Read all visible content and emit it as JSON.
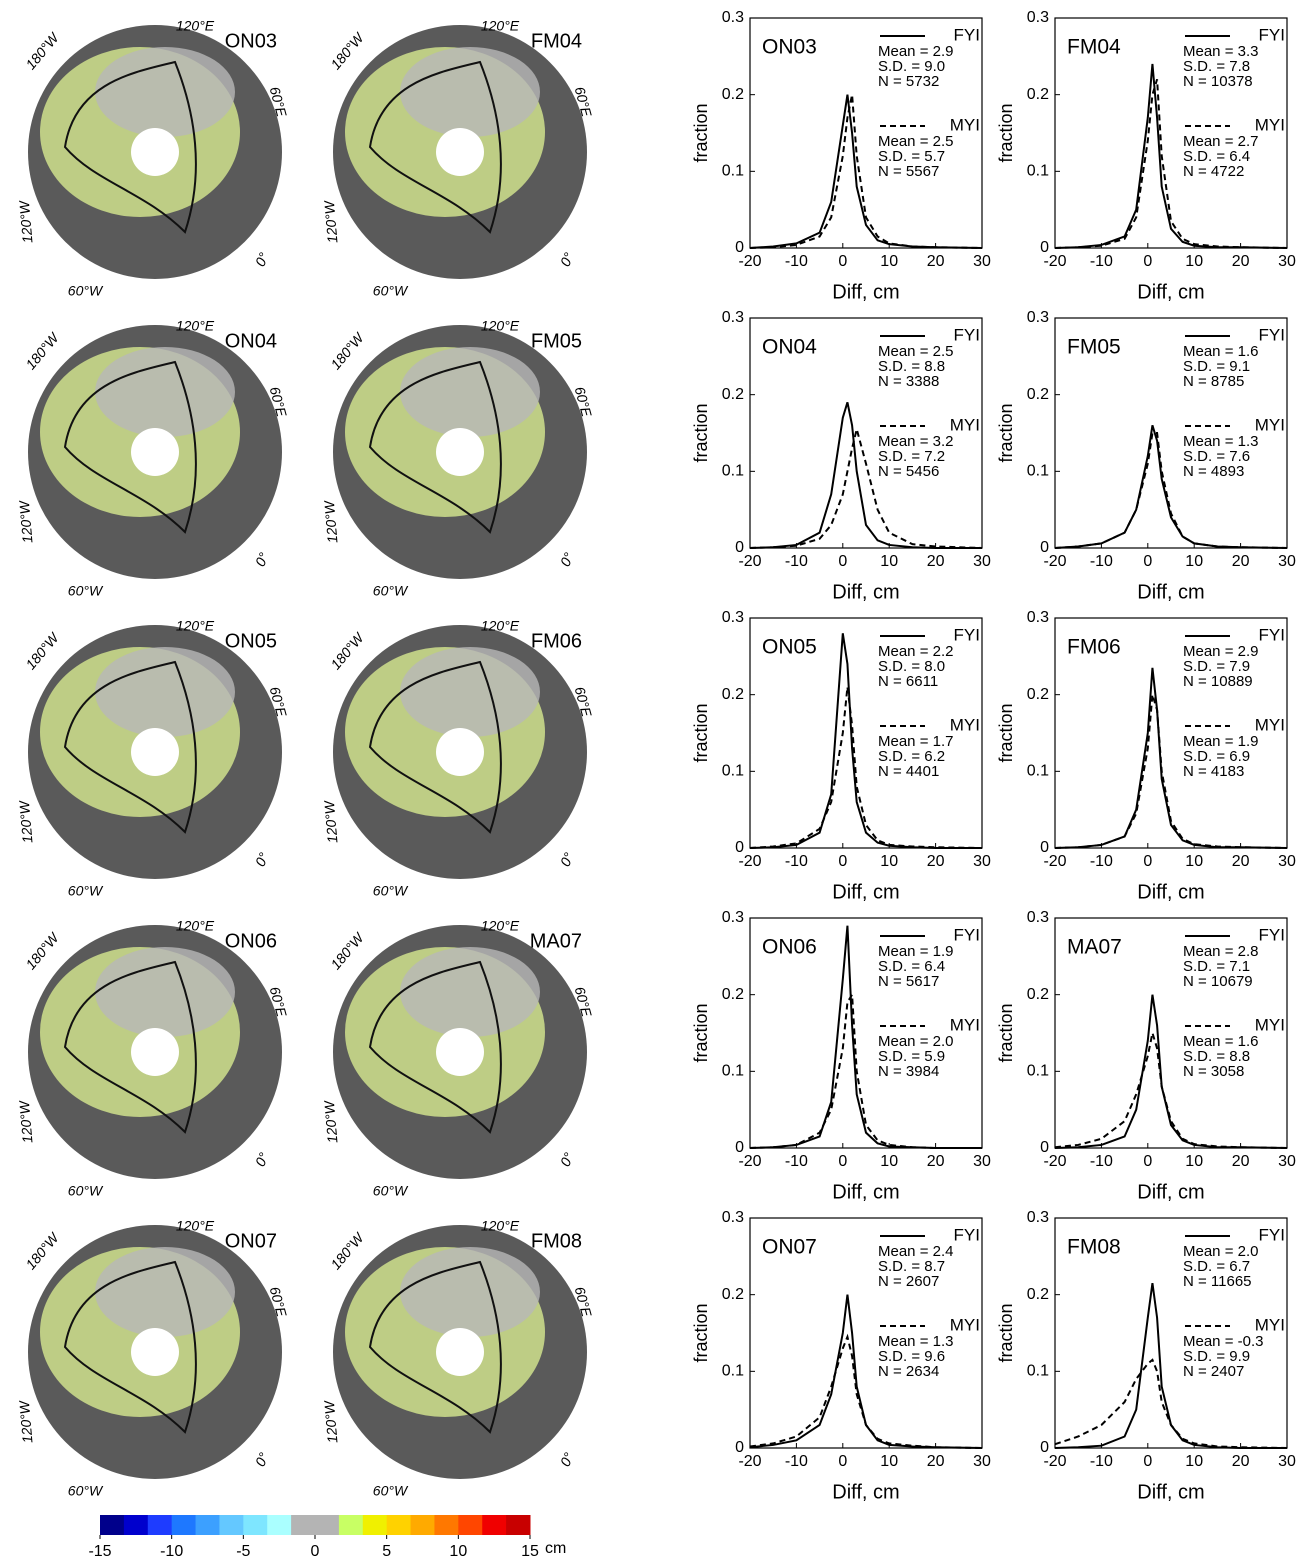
{
  "chart_data": [
    {
      "type": "line",
      "label": "ON03",
      "xlabel": "Diff, cm",
      "ylabel": "fraction",
      "xlim": [
        -20,
        30
      ],
      "ylim": [
        0,
        0.3
      ],
      "xticks": [
        -20,
        -10,
        0,
        10,
        20,
        30
      ],
      "yticks": [
        0,
        0.1,
        0.2,
        0.3
      ],
      "x": [
        -20,
        -15,
        -10,
        -5,
        -2.5,
        0,
        1,
        2,
        3,
        5,
        7.5,
        10,
        15,
        20,
        30
      ],
      "series": [
        {
          "name": "FYI",
          "color": "#000000",
          "dash": "solid",
          "stats": [
            "Mean = 2.9",
            "S.D. = 9.0",
            "N = 5732"
          ],
          "values": [
            0,
            0.002,
            0.006,
            0.02,
            0.06,
            0.16,
            0.2,
            0.15,
            0.08,
            0.03,
            0.01,
            0.005,
            0.002,
            0.001,
            0
          ]
        },
        {
          "name": "MYI",
          "color": "#000000",
          "dash": "dashed",
          "stats": [
            "Mean = 2.5",
            "S.D. = 5.7",
            "N = 5567"
          ],
          "values": [
            0,
            0.001,
            0.004,
            0.015,
            0.04,
            0.12,
            0.17,
            0.2,
            0.12,
            0.04,
            0.015,
            0.006,
            0.002,
            0.001,
            0
          ]
        }
      ]
    },
    {
      "type": "line",
      "label": "FM04",
      "xlabel": "Diff, cm",
      "ylabel": "fraction",
      "xlim": [
        -20,
        30
      ],
      "ylim": [
        0,
        0.3
      ],
      "xticks": [
        -20,
        -10,
        0,
        10,
        20,
        30
      ],
      "yticks": [
        0,
        0.1,
        0.2,
        0.3
      ],
      "x": [
        -20,
        -15,
        -10,
        -5,
        -2.5,
        0,
        1,
        2,
        3,
        5,
        7.5,
        10,
        15,
        20,
        30
      ],
      "series": [
        {
          "name": "FYI",
          "color": "#000000",
          "dash": "solid",
          "stats": [
            "Mean = 3.3",
            "S.D. = 7.8",
            "N = 10378"
          ],
          "values": [
            0,
            0.001,
            0.004,
            0.015,
            0.05,
            0.17,
            0.24,
            0.17,
            0.08,
            0.025,
            0.008,
            0.003,
            0.001,
            0.001,
            0
          ]
        },
        {
          "name": "MYI",
          "color": "#000000",
          "dash": "dashed",
          "stats": [
            "Mean = 2.7",
            "S.D. = 6.4",
            "N = 4722"
          ],
          "values": [
            0,
            0.001,
            0.003,
            0.012,
            0.04,
            0.14,
            0.2,
            0.22,
            0.12,
            0.035,
            0.012,
            0.005,
            0.002,
            0.001,
            0
          ]
        }
      ]
    },
    {
      "type": "line",
      "label": "ON04",
      "xlabel": "Diff, cm",
      "ylabel": "fraction",
      "xlim": [
        -20,
        30
      ],
      "ylim": [
        0,
        0.3
      ],
      "xticks": [
        -20,
        -10,
        0,
        10,
        20,
        30
      ],
      "yticks": [
        0,
        0.1,
        0.2,
        0.3
      ],
      "x": [
        -20,
        -15,
        -10,
        -5,
        -2.5,
        0,
        1,
        2,
        3,
        5,
        7.5,
        10,
        15,
        20,
        30
      ],
      "series": [
        {
          "name": "FYI",
          "color": "#000000",
          "dash": "solid",
          "stats": [
            "Mean = 2.5",
            "S.D. = 8.8",
            "N = 3388"
          ],
          "values": [
            0,
            0.001,
            0.004,
            0.02,
            0.07,
            0.17,
            0.19,
            0.16,
            0.1,
            0.03,
            0.01,
            0.004,
            0.001,
            0,
            0
          ]
        },
        {
          "name": "MYI",
          "color": "#000000",
          "dash": "dashed",
          "stats": [
            "Mean = 3.2",
            "S.D. = 7.2",
            "N = 5456"
          ],
          "values": [
            0,
            0.001,
            0.003,
            0.012,
            0.03,
            0.07,
            0.1,
            0.13,
            0.155,
            0.11,
            0.05,
            0.02,
            0.005,
            0.002,
            0
          ]
        }
      ]
    },
    {
      "type": "line",
      "label": "FM05",
      "xlabel": "Diff, cm",
      "ylabel": "fraction",
      "xlim": [
        -20,
        30
      ],
      "ylim": [
        0,
        0.3
      ],
      "xticks": [
        -20,
        -10,
        0,
        10,
        20,
        30
      ],
      "yticks": [
        0,
        0.1,
        0.2,
        0.3
      ],
      "x": [
        -20,
        -15,
        -10,
        -5,
        -2.5,
        0,
        1,
        2,
        3,
        5,
        7.5,
        10,
        15,
        20,
        30
      ],
      "series": [
        {
          "name": "FYI",
          "color": "#000000",
          "dash": "solid",
          "stats": [
            "Mean = 1.6",
            "S.D. = 9.1",
            "N = 8785"
          ],
          "values": [
            0,
            0.002,
            0.006,
            0.02,
            0.05,
            0.12,
            0.16,
            0.14,
            0.09,
            0.04,
            0.015,
            0.006,
            0.002,
            0.001,
            0
          ]
        },
        {
          "name": "MYI",
          "color": "#000000",
          "dash": "dashed",
          "stats": [
            "Mean = 1.3",
            "S.D. = 7.6",
            "N = 4893"
          ],
          "values": [
            0,
            0.002,
            0.006,
            0.02,
            0.05,
            0.11,
            0.15,
            0.15,
            0.1,
            0.045,
            0.015,
            0.006,
            0.002,
            0.001,
            0
          ]
        }
      ]
    },
    {
      "type": "line",
      "label": "ON05",
      "xlabel": "Diff, cm",
      "ylabel": "fraction",
      "xlim": [
        -20,
        30
      ],
      "ylim": [
        0,
        0.3
      ],
      "xticks": [
        -20,
        -10,
        0,
        10,
        20,
        30
      ],
      "yticks": [
        0,
        0.1,
        0.2,
        0.3
      ],
      "x": [
        -20,
        -15,
        -10,
        -5,
        -2.5,
        0,
        1,
        2,
        3,
        5,
        7.5,
        10,
        15,
        20,
        30
      ],
      "series": [
        {
          "name": "FYI",
          "color": "#000000",
          "dash": "solid",
          "stats": [
            "Mean = 2.2",
            "S.D. = 8.0",
            "N = 6611"
          ],
          "values": [
            0,
            0.001,
            0.004,
            0.02,
            0.07,
            0.28,
            0.24,
            0.13,
            0.06,
            0.02,
            0.007,
            0.003,
            0.001,
            0,
            0
          ]
        },
        {
          "name": "MYI",
          "color": "#000000",
          "dash": "dashed",
          "stats": [
            "Mean = 1.7",
            "S.D. = 6.2",
            "N = 4401"
          ],
          "values": [
            0,
            0.002,
            0.006,
            0.025,
            0.06,
            0.15,
            0.21,
            0.16,
            0.08,
            0.03,
            0.01,
            0.004,
            0.002,
            0.001,
            0
          ]
        }
      ]
    },
    {
      "type": "line",
      "label": "FM06",
      "xlabel": "Diff, cm",
      "ylabel": "fraction",
      "xlim": [
        -20,
        30
      ],
      "ylim": [
        0,
        0.3
      ],
      "xticks": [
        -20,
        -10,
        0,
        10,
        20,
        30
      ],
      "yticks": [
        0,
        0.1,
        0.2,
        0.3
      ],
      "x": [
        -20,
        -15,
        -10,
        -5,
        -2.5,
        0,
        1,
        2,
        3,
        5,
        7.5,
        10,
        15,
        20,
        30
      ],
      "series": [
        {
          "name": "FYI",
          "color": "#000000",
          "dash": "solid",
          "stats": [
            "Mean = 2.9",
            "S.D. = 7.9",
            "N = 10889"
          ],
          "values": [
            0,
            0.001,
            0.004,
            0.015,
            0.05,
            0.15,
            0.235,
            0.18,
            0.09,
            0.03,
            0.01,
            0.004,
            0.001,
            0.001,
            0
          ]
        },
        {
          "name": "MYI",
          "color": "#000000",
          "dash": "dashed",
          "stats": [
            "Mean = 1.9",
            "S.D. = 6.9",
            "N = 4183"
          ],
          "values": [
            0,
            0.001,
            0.004,
            0.015,
            0.045,
            0.13,
            0.2,
            0.18,
            0.1,
            0.035,
            0.012,
            0.005,
            0.002,
            0.001,
            0
          ]
        }
      ]
    },
    {
      "type": "line",
      "label": "ON06",
      "xlabel": "Diff, cm",
      "ylabel": "fraction",
      "xlim": [
        -20,
        30
      ],
      "ylim": [
        0,
        0.3
      ],
      "xticks": [
        -20,
        -10,
        0,
        10,
        20,
        30
      ],
      "yticks": [
        0,
        0.1,
        0.2,
        0.3
      ],
      "x": [
        -20,
        -15,
        -10,
        -5,
        -2.5,
        0,
        1,
        2,
        3,
        5,
        7.5,
        10,
        15,
        20,
        30
      ],
      "series": [
        {
          "name": "FYI",
          "color": "#000000",
          "dash": "solid",
          "stats": [
            "Mean = 1.9",
            "S.D. = 6.4",
            "N = 5617"
          ],
          "values": [
            0,
            0.001,
            0.004,
            0.015,
            0.06,
            0.22,
            0.29,
            0.16,
            0.07,
            0.02,
            0.006,
            0.002,
            0.001,
            0,
            0
          ]
        },
        {
          "name": "MYI",
          "color": "#000000",
          "dash": "dashed",
          "stats": [
            "Mean = 2.0",
            "S.D. = 5.9",
            "N = 3984"
          ],
          "values": [
            0,
            0.001,
            0.004,
            0.02,
            0.05,
            0.13,
            0.19,
            0.2,
            0.1,
            0.03,
            0.01,
            0.004,
            0.001,
            0,
            0
          ]
        }
      ]
    },
    {
      "type": "line",
      "label": "MA07",
      "xlabel": "Diff, cm",
      "ylabel": "fraction",
      "xlim": [
        -20,
        30
      ],
      "ylim": [
        0,
        0.3
      ],
      "xticks": [
        -20,
        -10,
        0,
        10,
        20,
        30
      ],
      "yticks": [
        0,
        0.1,
        0.2,
        0.3
      ],
      "x": [
        -20,
        -15,
        -10,
        -5,
        -2.5,
        0,
        1,
        2,
        3,
        5,
        7.5,
        10,
        15,
        20,
        30
      ],
      "series": [
        {
          "name": "FYI",
          "color": "#000000",
          "dash": "solid",
          "stats": [
            "Mean = 2.8",
            "S.D. = 7.1",
            "N = 10679"
          ],
          "values": [
            0,
            0.001,
            0.004,
            0.015,
            0.05,
            0.14,
            0.2,
            0.16,
            0.08,
            0.03,
            0.01,
            0.004,
            0.001,
            0.001,
            0
          ]
        },
        {
          "name": "MYI",
          "color": "#000000",
          "dash": "dashed",
          "stats": [
            "Mean = 1.6",
            "S.D. = 8.8",
            "N = 3058"
          ],
          "values": [
            0.001,
            0.004,
            0.012,
            0.035,
            0.07,
            0.12,
            0.15,
            0.13,
            0.08,
            0.035,
            0.012,
            0.005,
            0.002,
            0.001,
            0
          ]
        }
      ]
    },
    {
      "type": "line",
      "label": "ON07",
      "xlabel": "Diff, cm",
      "ylabel": "fraction",
      "xlim": [
        -20,
        30
      ],
      "ylim": [
        0,
        0.3
      ],
      "xticks": [
        -20,
        -10,
        0,
        10,
        20,
        30
      ],
      "yticks": [
        0,
        0.1,
        0.2,
        0.3
      ],
      "x": [
        -20,
        -15,
        -10,
        -5,
        -2.5,
        0,
        1,
        2,
        3,
        5,
        7.5,
        10,
        15,
        20,
        30
      ],
      "series": [
        {
          "name": "FYI",
          "color": "#000000",
          "dash": "solid",
          "stats": [
            "Mean = 2.4",
            "S.D. = 8.7",
            "N = 2607"
          ],
          "values": [
            0.001,
            0.004,
            0.01,
            0.03,
            0.07,
            0.15,
            0.2,
            0.15,
            0.08,
            0.03,
            0.01,
            0.004,
            0.002,
            0.001,
            0
          ]
        },
        {
          "name": "MYI",
          "color": "#000000",
          "dash": "dashed",
          "stats": [
            "Mean = 1.3",
            "S.D. = 9.6",
            "N = 2634"
          ],
          "values": [
            0.002,
            0.006,
            0.015,
            0.04,
            0.08,
            0.13,
            0.145,
            0.12,
            0.07,
            0.03,
            0.012,
            0.006,
            0.003,
            0.001,
            0
          ]
        }
      ]
    },
    {
      "type": "line",
      "label": "FM08",
      "xlabel": "Diff, cm",
      "ylabel": "fraction",
      "xlim": [
        -20,
        30
      ],
      "ylim": [
        0,
        0.3
      ],
      "xticks": [
        -20,
        -10,
        0,
        10,
        20,
        30
      ],
      "yticks": [
        0,
        0.1,
        0.2,
        0.3
      ],
      "x": [
        -20,
        -15,
        -10,
        -5,
        -2.5,
        0,
        1,
        2,
        3,
        5,
        7.5,
        10,
        15,
        20,
        30
      ],
      "series": [
        {
          "name": "FYI",
          "color": "#000000",
          "dash": "solid",
          "stats": [
            "Mean = 2.0",
            "S.D. = 6.7",
            "N = 11665"
          ],
          "values": [
            0,
            0.001,
            0.003,
            0.015,
            0.05,
            0.17,
            0.215,
            0.17,
            0.08,
            0.03,
            0.01,
            0.004,
            0.001,
            0,
            0
          ]
        },
        {
          "name": "MYI",
          "color": "#000000",
          "dash": "dashed",
          "stats": [
            "Mean = -0.3",
            "S.D. = 9.9",
            "N = 2407"
          ],
          "values": [
            0.005,
            0.015,
            0.03,
            0.06,
            0.09,
            0.11,
            0.115,
            0.1,
            0.06,
            0.03,
            0.012,
            0.006,
            0.002,
            0.001,
            0
          ]
        }
      ]
    }
  ],
  "maps": [
    {
      "label": "ON03"
    },
    {
      "label": "FM04"
    },
    {
      "label": "ON04"
    },
    {
      "label": "FM05"
    },
    {
      "label": "ON05"
    },
    {
      "label": "FM06"
    },
    {
      "label": "ON06"
    },
    {
      "label": "MA07"
    },
    {
      "label": "ON07"
    },
    {
      "label": "FM08"
    }
  ],
  "map_longitudes": [
    "120°E",
    "180°W",
    "60°E",
    "120°W",
    "0°",
    "60°W"
  ],
  "colorbar": {
    "ticks": [
      -15,
      -10,
      -5,
      0,
      5,
      10,
      15
    ],
    "range": [
      -15,
      15
    ],
    "unit": "cm",
    "colors": [
      "#00008b",
      "#0000cd",
      "#1e3cff",
      "#1e78ff",
      "#3ca0ff",
      "#64c8ff",
      "#7ee6ff",
      "#aaffff",
      "#b4b4b4",
      "#b4b4b4",
      "#c8ff64",
      "#f0f000",
      "#ffd200",
      "#ffaa00",
      "#ff7800",
      "#ff4600",
      "#f00000",
      "#c80000"
    ]
  }
}
